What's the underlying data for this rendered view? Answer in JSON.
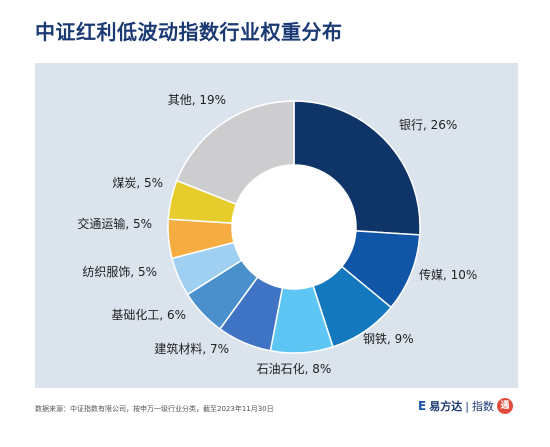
{
  "title": "中证红利低波动指数行业权重分布",
  "footer": {
    "source": "数据来源：中证指数有限公司，按申万一级行业分类，截至2023年11月30日",
    "brand_mark": "E",
    "brand_name": "易方达",
    "brand_sub": "指数",
    "brand_seal_text": "通"
  },
  "colors": {
    "panel_bg": "#dbe3ed",
    "title": "#1b3a73"
  },
  "chart_data": {
    "type": "pie",
    "subtype": "donut",
    "title": "中证红利低波动指数行业权重分布",
    "unit": "%",
    "slices": [
      {
        "label": "银行",
        "value": 26,
        "color": "#0f3468",
        "text": "银行, 26%"
      },
      {
        "label": "传媒",
        "value": 10,
        "color": "#1155a6",
        "text": "传媒, 10%"
      },
      {
        "label": "钢铁",
        "value": 9,
        "color": "#1478bf",
        "text": "钢铁, 9%"
      },
      {
        "label": "石油石化",
        "value": 8,
        "color": "#5ec6f4",
        "text": "石油石化, 8%"
      },
      {
        "label": "建筑材料",
        "value": 7,
        "color": "#3f73c4",
        "text": "建筑材料, 7%"
      },
      {
        "label": "基础化工",
        "value": 6,
        "color": "#4a90cc",
        "text": "基础化工, 6%"
      },
      {
        "label": "纺织服饰",
        "value": 5,
        "color": "#9fd0f1",
        "text": "纺织服饰, 5%"
      },
      {
        "label": "交通运输",
        "value": 5,
        "color": "#f5ac41",
        "text": "交通运输, 5%"
      },
      {
        "label": "煤炭",
        "value": 5,
        "color": "#e6cd2b",
        "text": "煤炭, 5%"
      },
      {
        "label": "其他",
        "value": 19,
        "color": "#cdcdcf",
        "text": "其他, 19%"
      }
    ]
  }
}
